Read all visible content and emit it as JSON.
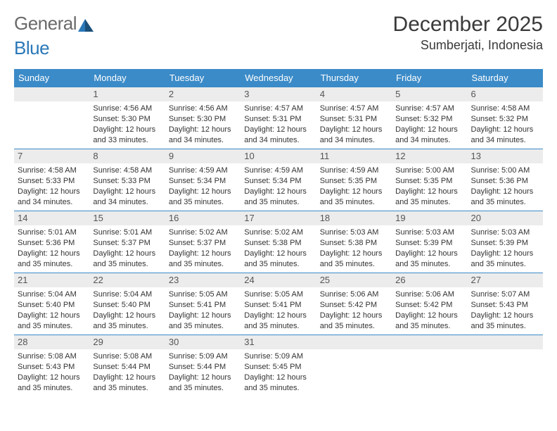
{
  "logo": {
    "text1": "General",
    "text2": "Blue"
  },
  "title": "December 2025",
  "location": "Sumberjati, Indonesia",
  "colors": {
    "header_bg": "#3b8bc8",
    "header_text": "#ffffff",
    "cell_head_bg": "#ececec",
    "row_border": "#3b8bc8",
    "body_text": "#333333",
    "page_bg": "#ffffff"
  },
  "typography": {
    "title_fontsize": 30,
    "location_fontsize": 18,
    "dayhead_fontsize": 13,
    "daynum_fontsize": 13,
    "body_fontsize": 11
  },
  "weekdays": [
    "Sunday",
    "Monday",
    "Tuesday",
    "Wednesday",
    "Thursday",
    "Friday",
    "Saturday"
  ],
  "weeks": [
    [
      null,
      {
        "n": "1",
        "sr": "4:56 AM",
        "ss": "5:30 PM",
        "dl": "12 hours and 33 minutes."
      },
      {
        "n": "2",
        "sr": "4:56 AM",
        "ss": "5:30 PM",
        "dl": "12 hours and 34 minutes."
      },
      {
        "n": "3",
        "sr": "4:57 AM",
        "ss": "5:31 PM",
        "dl": "12 hours and 34 minutes."
      },
      {
        "n": "4",
        "sr": "4:57 AM",
        "ss": "5:31 PM",
        "dl": "12 hours and 34 minutes."
      },
      {
        "n": "5",
        "sr": "4:57 AM",
        "ss": "5:32 PM",
        "dl": "12 hours and 34 minutes."
      },
      {
        "n": "6",
        "sr": "4:58 AM",
        "ss": "5:32 PM",
        "dl": "12 hours and 34 minutes."
      }
    ],
    [
      {
        "n": "7",
        "sr": "4:58 AM",
        "ss": "5:33 PM",
        "dl": "12 hours and 34 minutes."
      },
      {
        "n": "8",
        "sr": "4:58 AM",
        "ss": "5:33 PM",
        "dl": "12 hours and 34 minutes."
      },
      {
        "n": "9",
        "sr": "4:59 AM",
        "ss": "5:34 PM",
        "dl": "12 hours and 35 minutes."
      },
      {
        "n": "10",
        "sr": "4:59 AM",
        "ss": "5:34 PM",
        "dl": "12 hours and 35 minutes."
      },
      {
        "n": "11",
        "sr": "4:59 AM",
        "ss": "5:35 PM",
        "dl": "12 hours and 35 minutes."
      },
      {
        "n": "12",
        "sr": "5:00 AM",
        "ss": "5:35 PM",
        "dl": "12 hours and 35 minutes."
      },
      {
        "n": "13",
        "sr": "5:00 AM",
        "ss": "5:36 PM",
        "dl": "12 hours and 35 minutes."
      }
    ],
    [
      {
        "n": "14",
        "sr": "5:01 AM",
        "ss": "5:36 PM",
        "dl": "12 hours and 35 minutes."
      },
      {
        "n": "15",
        "sr": "5:01 AM",
        "ss": "5:37 PM",
        "dl": "12 hours and 35 minutes."
      },
      {
        "n": "16",
        "sr": "5:02 AM",
        "ss": "5:37 PM",
        "dl": "12 hours and 35 minutes."
      },
      {
        "n": "17",
        "sr": "5:02 AM",
        "ss": "5:38 PM",
        "dl": "12 hours and 35 minutes."
      },
      {
        "n": "18",
        "sr": "5:03 AM",
        "ss": "5:38 PM",
        "dl": "12 hours and 35 minutes."
      },
      {
        "n": "19",
        "sr": "5:03 AM",
        "ss": "5:39 PM",
        "dl": "12 hours and 35 minutes."
      },
      {
        "n": "20",
        "sr": "5:03 AM",
        "ss": "5:39 PM",
        "dl": "12 hours and 35 minutes."
      }
    ],
    [
      {
        "n": "21",
        "sr": "5:04 AM",
        "ss": "5:40 PM",
        "dl": "12 hours and 35 minutes."
      },
      {
        "n": "22",
        "sr": "5:04 AM",
        "ss": "5:40 PM",
        "dl": "12 hours and 35 minutes."
      },
      {
        "n": "23",
        "sr": "5:05 AM",
        "ss": "5:41 PM",
        "dl": "12 hours and 35 minutes."
      },
      {
        "n": "24",
        "sr": "5:05 AM",
        "ss": "5:41 PM",
        "dl": "12 hours and 35 minutes."
      },
      {
        "n": "25",
        "sr": "5:06 AM",
        "ss": "5:42 PM",
        "dl": "12 hours and 35 minutes."
      },
      {
        "n": "26",
        "sr": "5:06 AM",
        "ss": "5:42 PM",
        "dl": "12 hours and 35 minutes."
      },
      {
        "n": "27",
        "sr": "5:07 AM",
        "ss": "5:43 PM",
        "dl": "12 hours and 35 minutes."
      }
    ],
    [
      {
        "n": "28",
        "sr": "5:08 AM",
        "ss": "5:43 PM",
        "dl": "12 hours and 35 minutes."
      },
      {
        "n": "29",
        "sr": "5:08 AM",
        "ss": "5:44 PM",
        "dl": "12 hours and 35 minutes."
      },
      {
        "n": "30",
        "sr": "5:09 AM",
        "ss": "5:44 PM",
        "dl": "12 hours and 35 minutes."
      },
      {
        "n": "31",
        "sr": "5:09 AM",
        "ss": "5:45 PM",
        "dl": "12 hours and 35 minutes."
      },
      null,
      null,
      null
    ]
  ],
  "labels": {
    "sunrise": "Sunrise: ",
    "sunset": "Sunset: ",
    "daylight": "Daylight: "
  }
}
